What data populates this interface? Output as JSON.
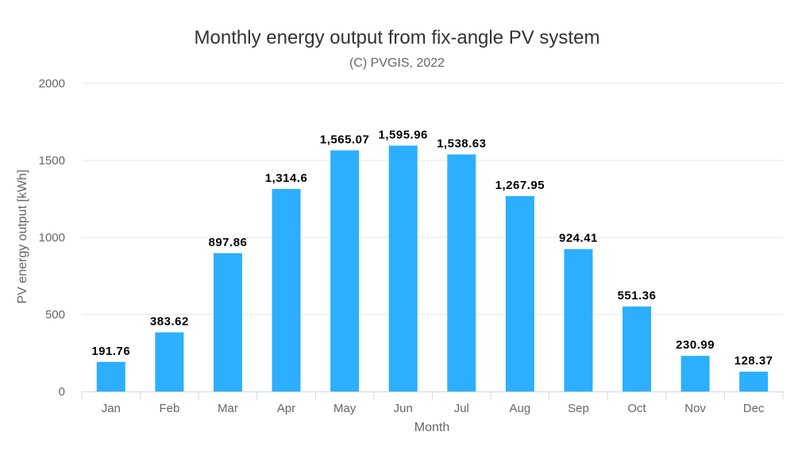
{
  "chart_data": {
    "type": "bar",
    "title": "Monthly energy output from fix-angle PV system",
    "subtitle": "(C) PVGIS, 2022",
    "xlabel": "Month",
    "ylabel": "PV energy output [kWh]",
    "categories": [
      "Jan",
      "Feb",
      "Mar",
      "Apr",
      "May",
      "Jun",
      "Jul",
      "Aug",
      "Sep",
      "Oct",
      "Nov",
      "Dec"
    ],
    "values": [
      191.76,
      383.62,
      897.86,
      1314.6,
      1565.07,
      1595.96,
      1538.63,
      1267.95,
      924.41,
      551.36,
      230.99,
      128.37
    ],
    "data_labels": [
      "191.76",
      "383.62",
      "897.86",
      "1,314.6",
      "1,565.07",
      "1,595.96",
      "1,538.63",
      "1,267.95",
      "924.41",
      "551.36",
      "230.99",
      "128.37"
    ],
    "ylim": [
      0,
      2000
    ],
    "yticks": [
      0,
      500,
      1000,
      1500,
      2000
    ],
    "grid": true,
    "legend": "none",
    "bar_color": "#2caffe"
  }
}
